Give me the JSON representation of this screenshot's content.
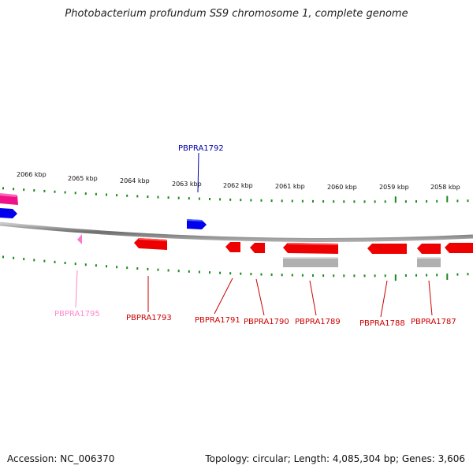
{
  "title": "Photobacterium profundum SS9 chromosome 1, complete genome",
  "footer": {
    "accession_label": "Accession:",
    "accession": "NC_006370",
    "topology_label": "Topology:",
    "topology": "circular",
    "length_label": "Length:",
    "length": "4,085,304 bp",
    "genes_label": "Genes:",
    "genes": "3,606"
  },
  "colors": {
    "forward_gene": "#0000ee",
    "reverse_gene": "#ee0000",
    "pseudo_gene": "#ff77cc",
    "rna_gene": "#ee1188",
    "tick": "#1a8a1a",
    "backbone": "#8a8a8a",
    "grey_feature": "#b0b0b0"
  },
  "scale": {
    "ticks": [
      {
        "label": "2066 kbp"
      },
      {
        "label": "2065 kbp"
      },
      {
        "label": "2064 kbp"
      },
      {
        "label": "2063 kbp"
      },
      {
        "label": "2062 kbp"
      },
      {
        "label": "2061 kbp"
      },
      {
        "label": "2060 kbp"
      },
      {
        "label": "2059 kbp"
      },
      {
        "label": "2058 kbp"
      }
    ]
  },
  "genes": [
    {
      "label": "PBPRA1792",
      "strand": "forward",
      "color": "#0000aa"
    },
    {
      "label": "PBPRA1795",
      "strand": "reverse",
      "color": "#ff88cc"
    },
    {
      "label": "PBPRA1793",
      "strand": "reverse",
      "color": "#cc0000"
    },
    {
      "label": "PBPRA1791",
      "strand": "reverse",
      "color": "#cc0000"
    },
    {
      "label": "PBPRA1790",
      "strand": "reverse",
      "color": "#cc0000"
    },
    {
      "label": "PBPRA1789",
      "strand": "reverse",
      "color": "#cc0000"
    },
    {
      "label": "PBPRA1788",
      "strand": "reverse",
      "color": "#cc0000"
    },
    {
      "label": "PBPRA1787",
      "strand": "reverse",
      "color": "#cc0000"
    }
  ]
}
